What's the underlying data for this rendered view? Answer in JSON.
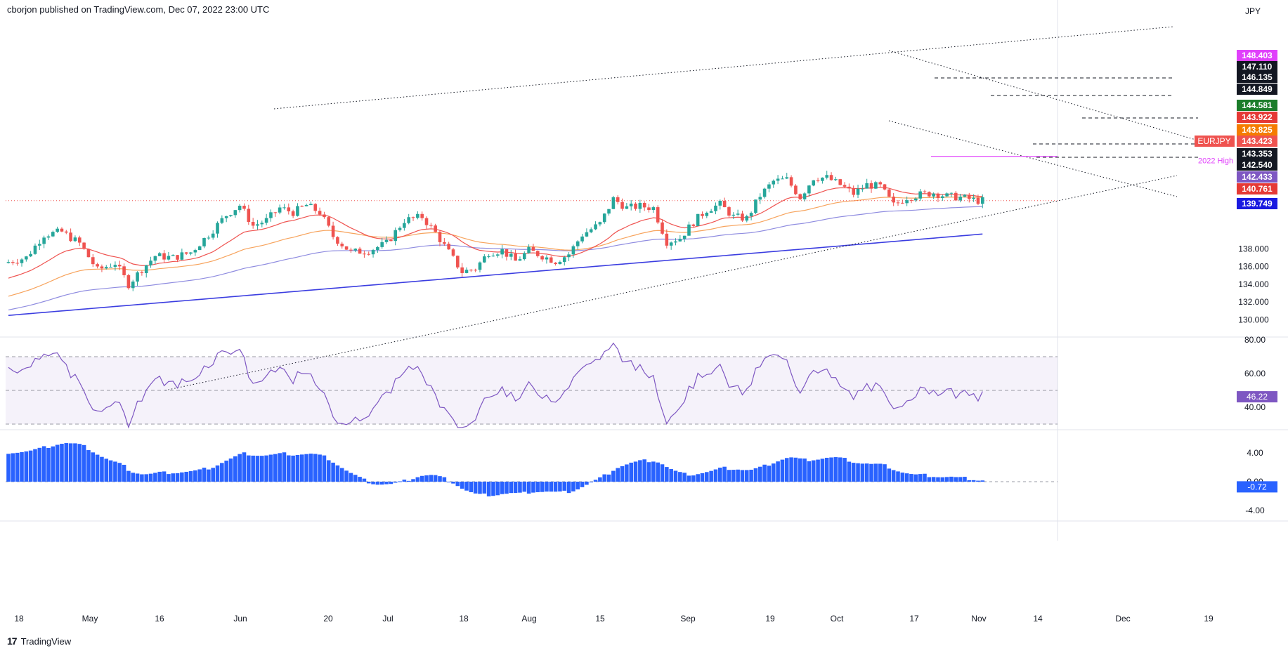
{
  "header": {
    "text": "cborjon published on TradingView.com, Dec 07, 2022 23:00 UTC"
  },
  "brand": {
    "logo": "17",
    "text": "TradingView"
  },
  "colors": {
    "up": "#26a69a",
    "down": "#ef5350",
    "ema20": "#ef5350",
    "ema50": "#f7a35c",
    "ema100": "#8f8ce0",
    "ema200": "#3b3de0",
    "rsi": "#7e57c2",
    "hist": "#2962ff",
    "high2022": "#e040fb"
  },
  "chart_data": {
    "type": "candlestick",
    "symbol": "EURJPY",
    "currency": "JPY",
    "x_labels": [
      "18",
      "May",
      "16",
      "Jun",
      "20",
      "Jul",
      "18",
      "Aug",
      "15",
      "Sep",
      "19",
      "Oct",
      "17",
      "Nov",
      "14",
      "Dec",
      "19"
    ],
    "price_axis": {
      "ticks": [
        "130.000",
        "132.000",
        "134.000",
        "136.000",
        "138.000"
      ],
      "range": [
        128.6,
        150.2
      ]
    },
    "price_labels": [
      {
        "value": "148.403",
        "color": "#e040fb",
        "text_color": "#ffffff"
      },
      {
        "value": "147.110",
        "color": "#131722",
        "text_color": "#ffffff"
      },
      {
        "value": "146.135",
        "color": "#131722",
        "text_color": "#ffffff"
      },
      {
        "value": "144.849",
        "color": "#131722",
        "text_color": "#ffffff"
      },
      {
        "value": "144.581",
        "color": "#1b7d2a",
        "text_color": "#ffffff"
      },
      {
        "value": "143.922",
        "color": "#e53935",
        "text_color": "#ffffff"
      },
      {
        "value": "143.825",
        "color": "#f57c00",
        "text_color": "#ffffff"
      },
      {
        "value": "143.423",
        "color": "#ef5350",
        "text_color": "#ffffff"
      },
      {
        "value": "143.353",
        "color": "#131722",
        "text_color": "#ffffff"
      },
      {
        "value": "142.540",
        "color": "#131722",
        "text_color": "#ffffff"
      },
      {
        "value": "142.433",
        "color": "#7e57c2",
        "text_color": "#ffffff"
      },
      {
        "value": "140.761",
        "color": "#e53935",
        "text_color": "#ffffff"
      },
      {
        "value": "139.749",
        "color": "#1a1ae0",
        "text_color": "#ffffff"
      }
    ],
    "symbol_tag": "EURJPY",
    "annotations": [
      {
        "text": "2022 High",
        "value": 148.403
      }
    ],
    "rsi": {
      "ticks": [
        "40.00",
        "60.00",
        "80.00"
      ],
      "range": [
        22,
        80
      ],
      "bands": [
        30,
        50,
        70
      ],
      "last": "46.22"
    },
    "macd": {
      "ticks": [
        "-4.00",
        "0.00",
        "4.00"
      ],
      "range": [
        -5.2,
        7.0
      ],
      "last": "-0.72"
    }
  }
}
